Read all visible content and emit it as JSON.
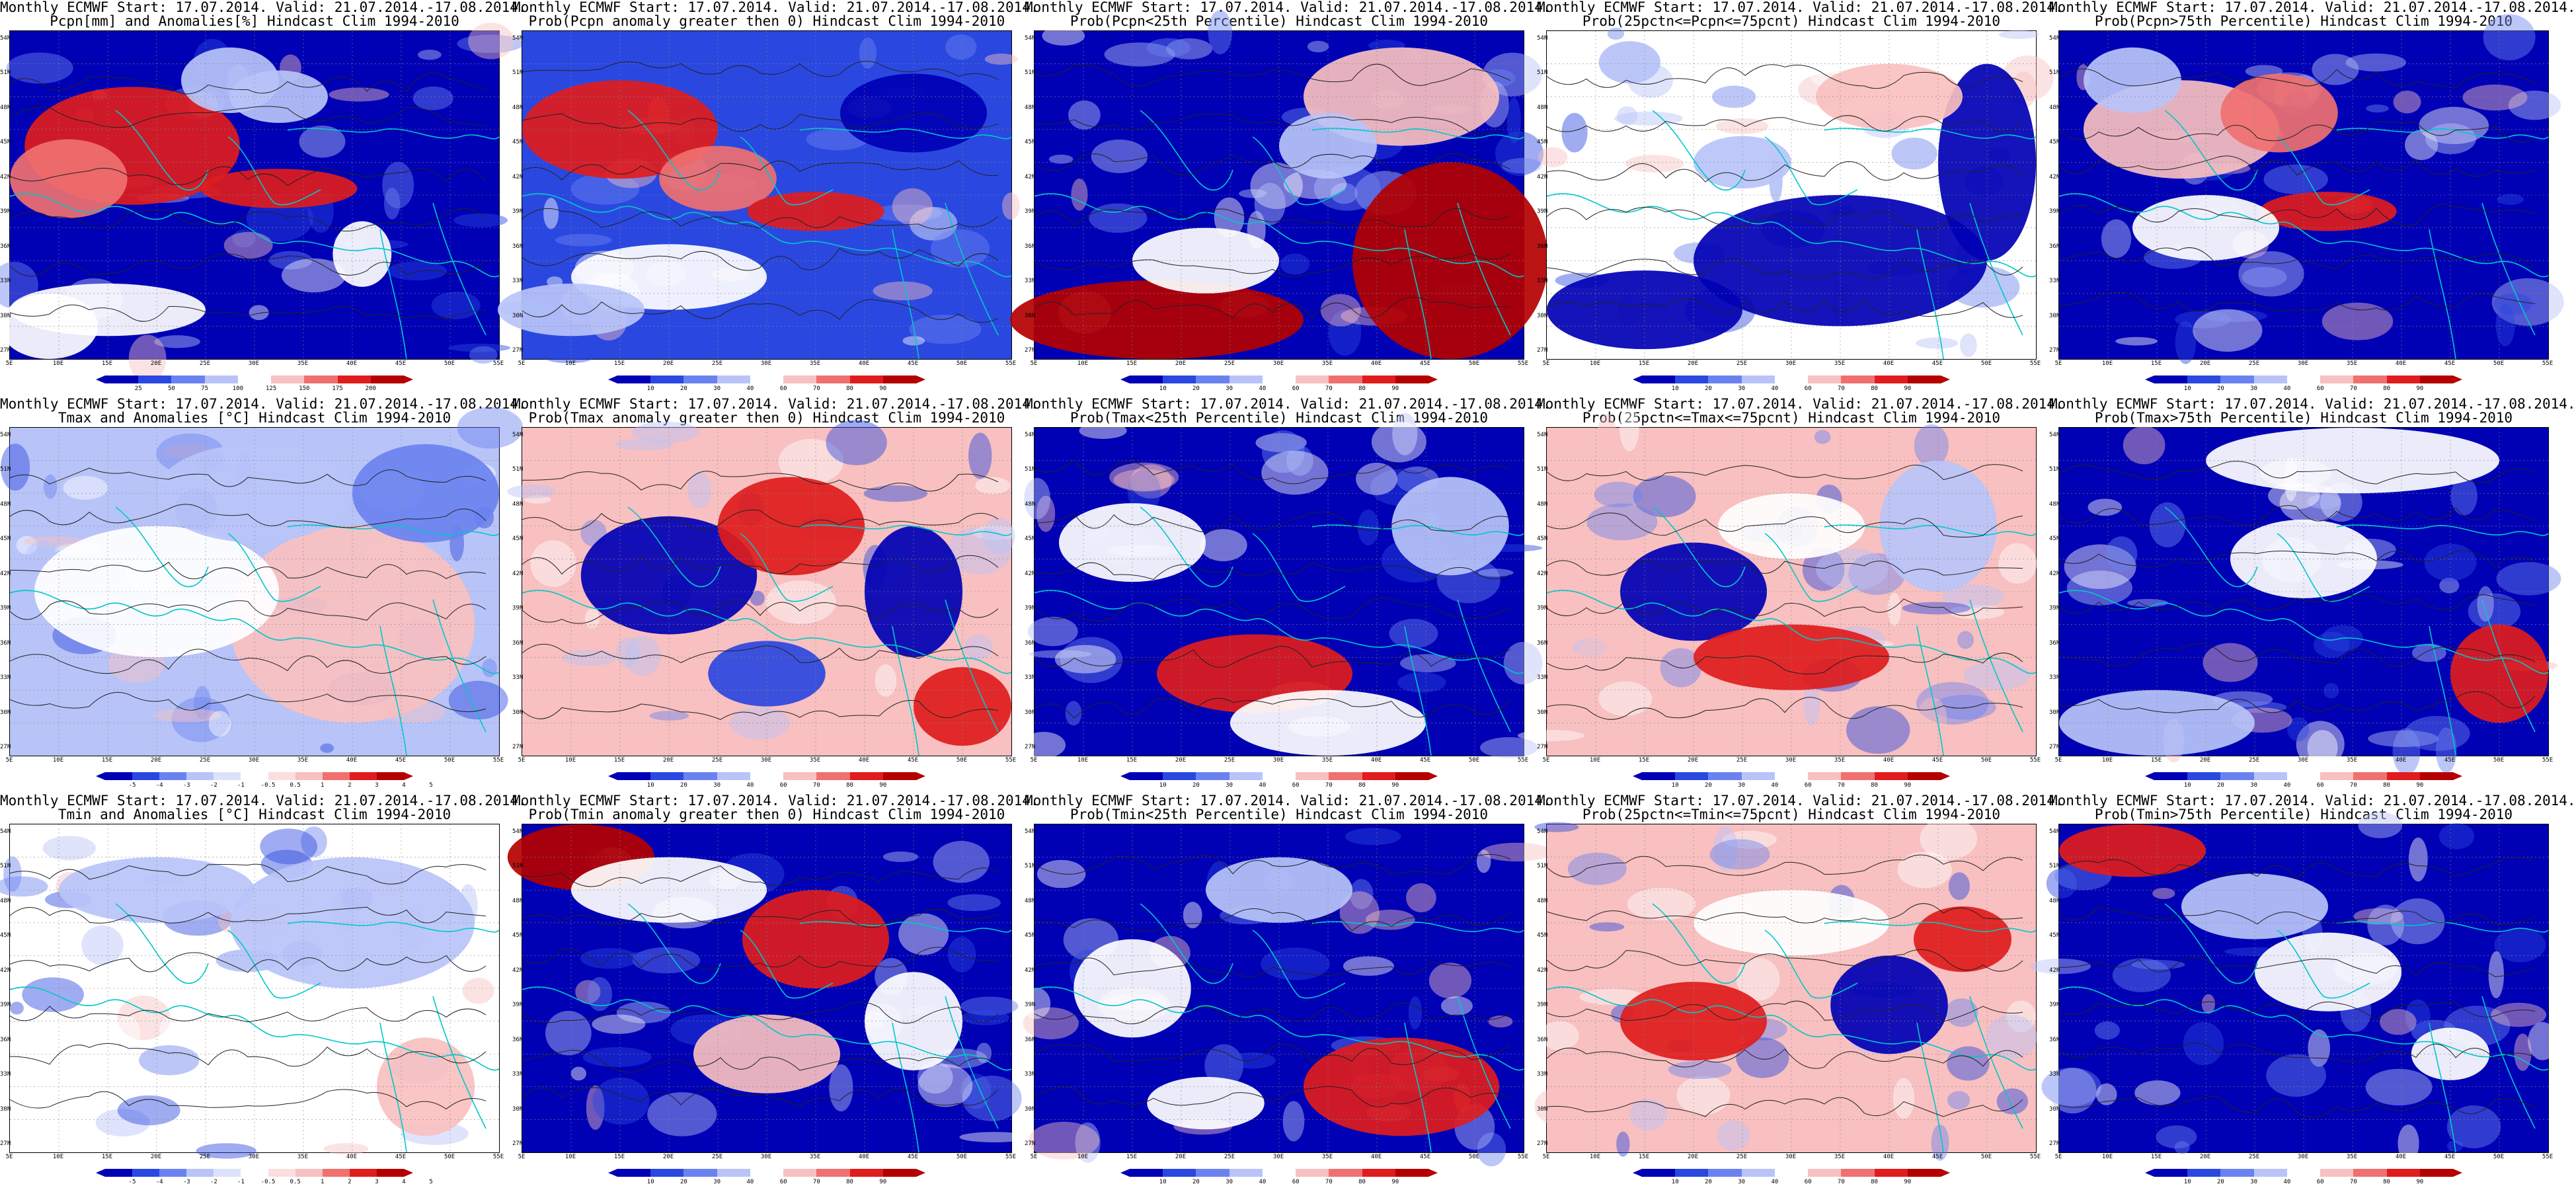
{
  "panels": [
    {
      "line1": "Monthly ECMWF Start: 17.07.2014. Valid: 21.07.2014.-17.08.2014.",
      "line2": "Pcpn[mm] and Anomalies[%] Hindcast Clim 1994-2010",
      "kind": "pcpn",
      "colorbar_labels": [
        "25",
        "50",
        "75",
        "100",
        "125",
        "150",
        "175",
        "200"
      ]
    },
    {
      "line1": "Monthly ECMWF Start: 17.07.2014. Valid: 21.07.2014.-17.08.2014.",
      "line2": "Prob(Pcpn anomaly greater then 0) Hindcast Clim 1994-2010",
      "kind": "probpos",
      "colorbar_labels": [
        "10",
        "20",
        "30",
        "40",
        "60",
        "70",
        "80",
        "90"
      ]
    },
    {
      "line1": "Monthly ECMWF Start: 17.07.2014. Valid: 21.07.2014.-17.08.2014.",
      "line2": "Prob(Pcpn<25th Percentile) Hindcast Clim 1994-2010",
      "kind": "problow",
      "colorbar_labels": [
        "10",
        "20",
        "30",
        "40",
        "60",
        "70",
        "80",
        "90"
      ]
    },
    {
      "line1": "Monthly ECMWF Start: 17.07.2014. Valid: 21.07.2014.-17.08.2014.",
      "line2": "Prob(25pctn<=Pcpn<=75pcnt) Hindcast Clim 1994-2010",
      "kind": "probmid",
      "colorbar_labels": [
        "10",
        "20",
        "30",
        "40",
        "60",
        "70",
        "80",
        "90"
      ]
    },
    {
      "line1": "Monthly ECMWF Start: 17.07.2014. Valid: 21.07.2014.-17.08.2014.",
      "line2": "Prob(Pcpn>75th Percentile) Hindcast Clim 1994-2010",
      "kind": "probhigh",
      "colorbar_labels": [
        "10",
        "20",
        "30",
        "40",
        "60",
        "70",
        "80",
        "90"
      ]
    },
    {
      "line1": "Monthly ECMWF Start: 17.07.2014. Valid: 21.07.2014.-17.08.2014.",
      "line2": "Tmax and Anomalies [°C] Hindcast Clim 1994-2010",
      "kind": "tanom",
      "colorbar_labels": [
        "-5",
        "-4",
        "-3",
        "-2",
        "-1",
        "-0.5",
        "0.5",
        "1",
        "2",
        "3",
        "4",
        "5"
      ]
    },
    {
      "line1": "Monthly ECMWF Start: 17.07.2014. Valid: 21.07.2014.-17.08.2014.",
      "line2": "Prob(Tmax anomaly greater then 0) Hindcast Clim 1994-2010",
      "kind": "probpos2",
      "colorbar_labels": [
        "10",
        "20",
        "30",
        "40",
        "60",
        "70",
        "80",
        "90"
      ]
    },
    {
      "line1": "Monthly ECMWF Start: 17.07.2014. Valid: 21.07.2014.-17.08.2014.",
      "line2": "Prob(Tmax<25th Percentile) Hindcast Clim 1994-2010",
      "kind": "problow2",
      "colorbar_labels": [
        "10",
        "20",
        "30",
        "40",
        "60",
        "70",
        "80",
        "90"
      ]
    },
    {
      "line1": "Monthly ECMWF Start: 17.07.2014. Valid: 21.07.2014.-17.08.2014.",
      "line2": "Prob(25pctn<=Tmax<=75pcnt) Hindcast Clim 1994-2010",
      "kind": "probmid2",
      "colorbar_labels": [
        "10",
        "20",
        "30",
        "40",
        "60",
        "70",
        "80",
        "90"
      ]
    },
    {
      "line1": "Monthly ECMWF Start: 17.07.2014. Valid: 21.07.2014.-17.08.2014.",
      "line2": "Prob(Tmax>75th Percentile) Hindcast Clim 1994-2010",
      "kind": "probhigh2",
      "colorbar_labels": [
        "10",
        "20",
        "30",
        "40",
        "60",
        "70",
        "80",
        "90"
      ]
    },
    {
      "line1": "Monthly ECMWF Start: 17.07.2014. Valid: 21.07.2014.-17.08.2014.",
      "line2": "Tmin and Anomalies [°C] Hindcast Clim 1994-2010",
      "kind": "tanom2",
      "colorbar_labels": [
        "-5",
        "-4",
        "-3",
        "-2",
        "-1",
        "-0.5",
        "0.5",
        "1",
        "2",
        "3",
        "4",
        "5"
      ]
    },
    {
      "line1": "Monthly ECMWF Start: 17.07.2014. Valid: 21.07.2014.-17.08.2014.",
      "line2": "Prob(Tmin anomaly greater then 0) Hindcast Clim 1994-2010",
      "kind": "probpos3",
      "colorbar_labels": [
        "10",
        "20",
        "30",
        "40",
        "60",
        "70",
        "80",
        "90"
      ]
    },
    {
      "line1": "Monthly ECMWF Start: 17.07.2014. Valid: 21.07.2014.-17.08.2014.",
      "line2": "Prob(Tmin<25th Percentile) Hindcast Clim 1994-2010",
      "kind": "problow3",
      "colorbar_labels": [
        "10",
        "20",
        "30",
        "40",
        "60",
        "70",
        "80",
        "90"
      ]
    },
    {
      "line1": "Monthly ECMWF Start: 17.07.2014. Valid: 21.07.2014.-17.08.2014.",
      "line2": "Prob(25pctn<=Tmin<=75pcnt) Hindcast Clim 1994-2010",
      "kind": "probmid3",
      "colorbar_labels": [
        "10",
        "20",
        "30",
        "40",
        "60",
        "70",
        "80",
        "90"
      ]
    },
    {
      "line1": "Monthly ECMWF Start: 17.07.2014. Valid: 21.07.2014.-17.08.2014.",
      "line2": "Prob(Tmin>75th Percentile) Hindcast Clim 1994-2010",
      "kind": "probhigh3",
      "colorbar_labels": [
        "10",
        "20",
        "30",
        "40",
        "60",
        "70",
        "80",
        "90"
      ]
    }
  ],
  "lat_labels": [
    "54N",
    "51N",
    "48N",
    "45N",
    "42N",
    "39N",
    "36N",
    "33N",
    "30N",
    "27N"
  ],
  "lon_labels": [
    "5E",
    "10E",
    "15E",
    "20E",
    "25E",
    "30E",
    "35E",
    "40E",
    "45E",
    "50E",
    "55E"
  ],
  "colors": {
    "deep_blue": "#0000b4",
    "blue": "#2a48e0",
    "mid_blue": "#6a82f0",
    "light_blue": "#b8c4f8",
    "white": "#ffffff",
    "light_red": "#f8c0c0",
    "mid_red": "#f07070",
    "red": "#e01c1c",
    "deep_red": "#b40000",
    "coast": "#00c8c8"
  }
}
